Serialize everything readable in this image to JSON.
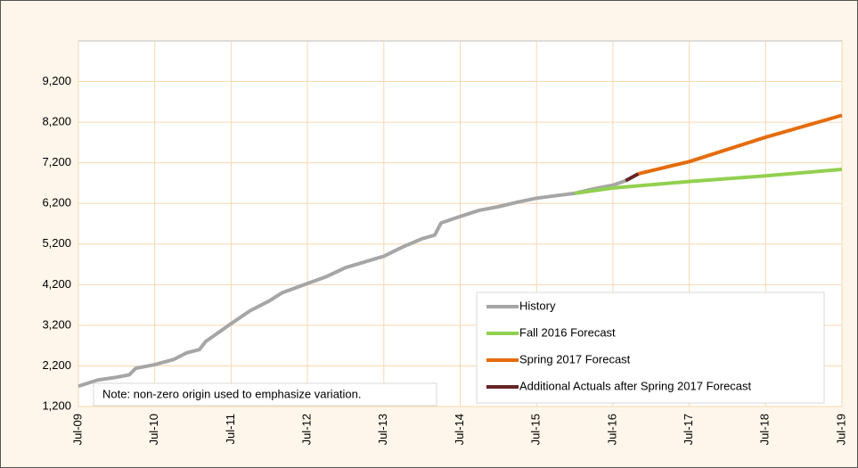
{
  "chart_data": {
    "type": "line",
    "annotation": "Note: non-zero origin used to emphasize variation.",
    "xlim": [
      "2009-07",
      "2019-07"
    ],
    "xticks": [
      {
        "value": "2009-07",
        "label": "Jul-09"
      },
      {
        "value": "2010-07",
        "label": "Jul-10"
      },
      {
        "value": "2011-07",
        "label": "Jul-11"
      },
      {
        "value": "2012-07",
        "label": "Jul-12"
      },
      {
        "value": "2013-07",
        "label": "Jul-13"
      },
      {
        "value": "2014-07",
        "label": "Jul-14"
      },
      {
        "value": "2015-07",
        "label": "Jul-15"
      },
      {
        "value": "2016-07",
        "label": "Jul-16"
      },
      {
        "value": "2017-07",
        "label": "Jul-17"
      },
      {
        "value": "2018-07",
        "label": "Jul-18"
      },
      {
        "value": "2019-07",
        "label": "Jul-19"
      }
    ],
    "ylim": [
      1200,
      10200
    ],
    "yticks": [
      {
        "value": 1200,
        "label": "1,200"
      },
      {
        "value": 2200,
        "label": "2,200"
      },
      {
        "value": 3200,
        "label": "3,200"
      },
      {
        "value": 4200,
        "label": "4,200"
      },
      {
        "value": 5200,
        "label": "5,200"
      },
      {
        "value": 6200,
        "label": "6,200"
      },
      {
        "value": 7200,
        "label": "7,200"
      },
      {
        "value": 8200,
        "label": "8,200"
      },
      {
        "value": 9200,
        "label": "9,200"
      }
    ],
    "grid": true,
    "legend": "lower right",
    "series": [
      {
        "name": "History",
        "color": "#a6a6a6",
        "x": [
          "2009-07",
          "2009-10",
          "2010-01",
          "2010-03",
          "2010-04",
          "2010-07",
          "2010-10",
          "2010-12",
          "2011-02",
          "2011-03",
          "2011-07",
          "2011-10",
          "2012-01",
          "2012-03",
          "2012-07",
          "2012-10",
          "2013-01",
          "2013-04",
          "2013-07",
          "2013-10",
          "2014-01",
          "2014-03",
          "2014-04",
          "2014-07",
          "2014-10",
          "2015-01",
          "2015-04",
          "2015-07",
          "2015-10",
          "2016-01",
          "2016-04",
          "2016-07",
          "2016-09"
        ],
        "values": [
          1700,
          1850,
          1920,
          1980,
          2140,
          2230,
          2360,
          2520,
          2600,
          2800,
          3240,
          3560,
          3800,
          4000,
          4230,
          4400,
          4620,
          4760,
          4900,
          5130,
          5330,
          5420,
          5720,
          5880,
          6030,
          6120,
          6230,
          6330,
          6390,
          6450,
          6560,
          6650,
          6760
        ]
      },
      {
        "name": "Fall 2016 Forecast",
        "color": "#92d050",
        "x": [
          "2016-01",
          "2016-07",
          "2017-07",
          "2018-07",
          "2019-07"
        ],
        "values": [
          6450,
          6580,
          6740,
          6880,
          7040
        ]
      },
      {
        "name": "Spring 2017 Forecast",
        "color": "#e46c0a",
        "x": [
          "2016-11",
          "2017-07",
          "2018-07",
          "2019-07"
        ],
        "values": [
          6930,
          7230,
          7830,
          8370
        ]
      },
      {
        "name": "Additional Actuals after Spring 2017 Forecast",
        "color": "#632523",
        "x": [
          "2016-09",
          "2016-11"
        ],
        "values": [
          6760,
          6930
        ]
      }
    ]
  }
}
